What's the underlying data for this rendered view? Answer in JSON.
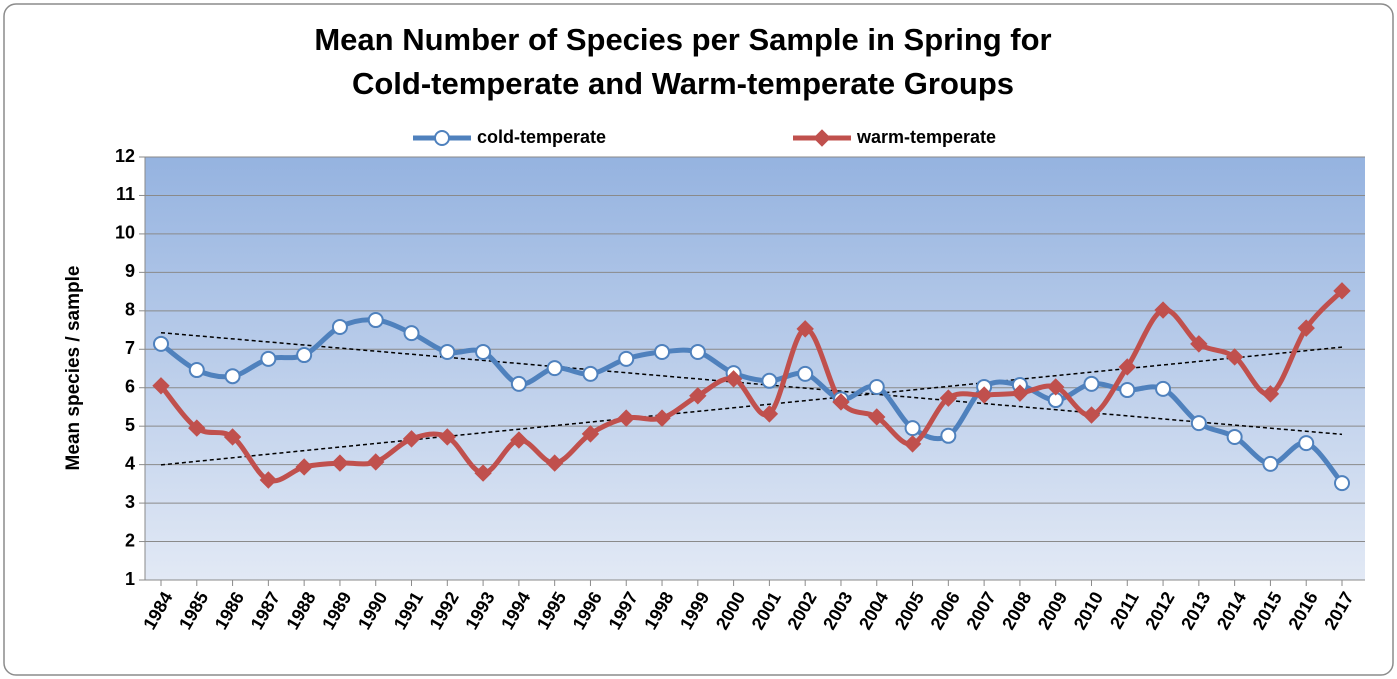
{
  "chart_data": {
    "type": "line",
    "title": [
      "Mean Number of Species per Sample in Spring for",
      "Cold-temperate and Warm-temperate Groups"
    ],
    "y_label": "Mean species / sample",
    "categories": [
      "1984",
      "1985",
      "1986",
      "1987",
      "1988",
      "1989",
      "1990",
      "1991",
      "1992",
      "1993",
      "1994",
      "1995",
      "1996",
      "1997",
      "1998",
      "1999",
      "2000",
      "2001",
      "2002",
      "2003",
      "2004",
      "2005",
      "2006",
      "2007",
      "2008",
      "2009",
      "2010",
      "2011",
      "2012",
      "2013",
      "2014",
      "2015",
      "2016",
      "2017"
    ],
    "series": [
      {
        "name": "cold-temperate",
        "color": "#4f81bd",
        "marker": "circle",
        "values": [
          7.14,
          6.46,
          6.3,
          6.75,
          6.85,
          7.58,
          7.76,
          7.42,
          6.93,
          6.93,
          6.1,
          6.51,
          6.36,
          6.75,
          6.93,
          6.93,
          6.38,
          6.18,
          6.36,
          5.7,
          6.02,
          4.95,
          4.75,
          6.02,
          6.07,
          5.68,
          6.1,
          5.94,
          5.97,
          5.08,
          4.72,
          4.02,
          4.56,
          3.52
        ]
      },
      {
        "name": "warm-temperate",
        "color": "#c0504d",
        "marker": "diamond",
        "values": [
          6.05,
          4.95,
          4.72,
          3.6,
          3.94,
          4.04,
          4.07,
          4.67,
          4.72,
          3.78,
          4.64,
          4.04,
          4.8,
          5.21,
          5.21,
          5.79,
          6.23,
          5.32,
          7.53,
          5.63,
          5.24,
          4.54,
          5.73,
          5.81,
          5.86,
          6.02,
          5.29,
          6.54,
          8.02,
          7.14,
          6.8,
          5.84,
          7.55,
          8.52
        ]
      }
    ],
    "ylim": [
      1,
      12
    ],
    "yticks": [
      1,
      2,
      3,
      4,
      5,
      6,
      7,
      8,
      9,
      10,
      11,
      12
    ],
    "grid": true,
    "smooth": true,
    "trendline": true,
    "legend": "top"
  }
}
